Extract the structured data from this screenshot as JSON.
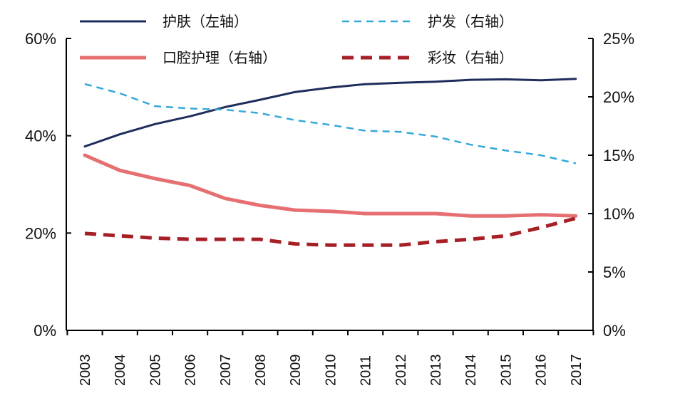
{
  "chart_data": {
    "type": "line",
    "title": "",
    "xlabel": "",
    "ylabel_left": "",
    "ylabel_right": "",
    "categories": [
      "2003",
      "2004",
      "2005",
      "2006",
      "2007",
      "2008",
      "2009",
      "2010",
      "2011",
      "2012",
      "2013",
      "2014",
      "2015",
      "2016",
      "2017"
    ],
    "left_axis": {
      "range": [
        0,
        60
      ],
      "ticks": [
        0,
        20,
        40,
        60
      ],
      "tick_labels": [
        "0%",
        "20%",
        "40%",
        "60%"
      ]
    },
    "right_axis": {
      "range": [
        0,
        25
      ],
      "ticks": [
        0,
        5,
        10,
        15,
        20,
        25
      ],
      "tick_labels": [
        "0%",
        "5%",
        "10%",
        "15%",
        "20%",
        "25%"
      ]
    },
    "grid": false,
    "legend_position": "top",
    "series": [
      {
        "name": "护肤（左轴）",
        "axis": "left",
        "color": "#1f2d5c",
        "dash": "solid",
        "width": 3,
        "values": [
          37.8,
          40.3,
          42.4,
          44.0,
          45.9,
          47.4,
          49.0,
          49.9,
          50.6,
          50.9,
          51.1,
          51.5,
          51.6,
          51.4,
          51.7
        ]
      },
      {
        "name": "护发（右轴）",
        "axis": "right",
        "color": "#35a9d8",
        "dash": "dashed",
        "width": 2.5,
        "values": [
          21.1,
          20.3,
          19.2,
          19.0,
          18.9,
          18.6,
          18.0,
          17.6,
          17.1,
          17.0,
          16.6,
          15.9,
          15.4,
          15.0,
          14.3
        ]
      },
      {
        "name": "口腔护理（右轴）",
        "axis": "right",
        "color": "#e66f72",
        "dash": "solid",
        "width": 5,
        "values": [
          15.0,
          13.7,
          13.0,
          12.4,
          11.3,
          10.7,
          10.3,
          10.2,
          10.0,
          10.0,
          10.0,
          9.8,
          9.8,
          9.9,
          9.8
        ]
      },
      {
        "name": "彩妆（右轴）",
        "axis": "right",
        "color": "#a61f26",
        "dash": "dashed-thick",
        "width": 5,
        "values": [
          8.3,
          8.1,
          7.9,
          7.8,
          7.8,
          7.8,
          7.4,
          7.3,
          7.3,
          7.3,
          7.6,
          7.8,
          8.1,
          8.8,
          9.6
        ]
      }
    ]
  }
}
